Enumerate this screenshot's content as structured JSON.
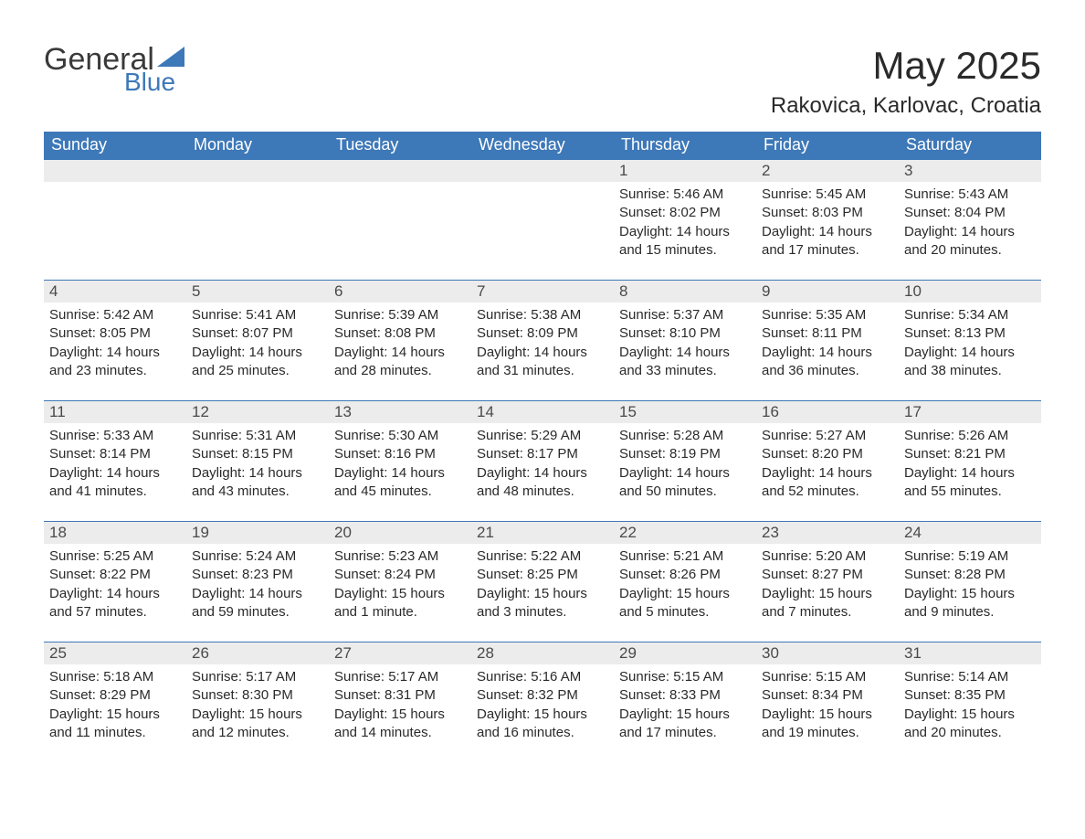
{
  "logo": {
    "text1": "General",
    "text2": "Blue"
  },
  "title": "May 2025",
  "location": "Rakovica, Karlovac, Croatia",
  "colors": {
    "header_bg": "#3d78b8",
    "header_text": "#ffffff",
    "daynum_bg": "#ececec",
    "border": "#3d78b8",
    "text": "#2a2a2a"
  },
  "weekdays": [
    "Sunday",
    "Monday",
    "Tuesday",
    "Wednesday",
    "Thursday",
    "Friday",
    "Saturday"
  ],
  "weeks": [
    [
      {
        "num": "",
        "sunrise": "",
        "sunset": "",
        "daylight": ""
      },
      {
        "num": "",
        "sunrise": "",
        "sunset": "",
        "daylight": ""
      },
      {
        "num": "",
        "sunrise": "",
        "sunset": "",
        "daylight": ""
      },
      {
        "num": "",
        "sunrise": "",
        "sunset": "",
        "daylight": ""
      },
      {
        "num": "1",
        "sunrise": "Sunrise: 5:46 AM",
        "sunset": "Sunset: 8:02 PM",
        "daylight": "Daylight: 14 hours and 15 minutes."
      },
      {
        "num": "2",
        "sunrise": "Sunrise: 5:45 AM",
        "sunset": "Sunset: 8:03 PM",
        "daylight": "Daylight: 14 hours and 17 minutes."
      },
      {
        "num": "3",
        "sunrise": "Sunrise: 5:43 AM",
        "sunset": "Sunset: 8:04 PM",
        "daylight": "Daylight: 14 hours and 20 minutes."
      }
    ],
    [
      {
        "num": "4",
        "sunrise": "Sunrise: 5:42 AM",
        "sunset": "Sunset: 8:05 PM",
        "daylight": "Daylight: 14 hours and 23 minutes."
      },
      {
        "num": "5",
        "sunrise": "Sunrise: 5:41 AM",
        "sunset": "Sunset: 8:07 PM",
        "daylight": "Daylight: 14 hours and 25 minutes."
      },
      {
        "num": "6",
        "sunrise": "Sunrise: 5:39 AM",
        "sunset": "Sunset: 8:08 PM",
        "daylight": "Daylight: 14 hours and 28 minutes."
      },
      {
        "num": "7",
        "sunrise": "Sunrise: 5:38 AM",
        "sunset": "Sunset: 8:09 PM",
        "daylight": "Daylight: 14 hours and 31 minutes."
      },
      {
        "num": "8",
        "sunrise": "Sunrise: 5:37 AM",
        "sunset": "Sunset: 8:10 PM",
        "daylight": "Daylight: 14 hours and 33 minutes."
      },
      {
        "num": "9",
        "sunrise": "Sunrise: 5:35 AM",
        "sunset": "Sunset: 8:11 PM",
        "daylight": "Daylight: 14 hours and 36 minutes."
      },
      {
        "num": "10",
        "sunrise": "Sunrise: 5:34 AM",
        "sunset": "Sunset: 8:13 PM",
        "daylight": "Daylight: 14 hours and 38 minutes."
      }
    ],
    [
      {
        "num": "11",
        "sunrise": "Sunrise: 5:33 AM",
        "sunset": "Sunset: 8:14 PM",
        "daylight": "Daylight: 14 hours and 41 minutes."
      },
      {
        "num": "12",
        "sunrise": "Sunrise: 5:31 AM",
        "sunset": "Sunset: 8:15 PM",
        "daylight": "Daylight: 14 hours and 43 minutes."
      },
      {
        "num": "13",
        "sunrise": "Sunrise: 5:30 AM",
        "sunset": "Sunset: 8:16 PM",
        "daylight": "Daylight: 14 hours and 45 minutes."
      },
      {
        "num": "14",
        "sunrise": "Sunrise: 5:29 AM",
        "sunset": "Sunset: 8:17 PM",
        "daylight": "Daylight: 14 hours and 48 minutes."
      },
      {
        "num": "15",
        "sunrise": "Sunrise: 5:28 AM",
        "sunset": "Sunset: 8:19 PM",
        "daylight": "Daylight: 14 hours and 50 minutes."
      },
      {
        "num": "16",
        "sunrise": "Sunrise: 5:27 AM",
        "sunset": "Sunset: 8:20 PM",
        "daylight": "Daylight: 14 hours and 52 minutes."
      },
      {
        "num": "17",
        "sunrise": "Sunrise: 5:26 AM",
        "sunset": "Sunset: 8:21 PM",
        "daylight": "Daylight: 14 hours and 55 minutes."
      }
    ],
    [
      {
        "num": "18",
        "sunrise": "Sunrise: 5:25 AM",
        "sunset": "Sunset: 8:22 PM",
        "daylight": "Daylight: 14 hours and 57 minutes."
      },
      {
        "num": "19",
        "sunrise": "Sunrise: 5:24 AM",
        "sunset": "Sunset: 8:23 PM",
        "daylight": "Daylight: 14 hours and 59 minutes."
      },
      {
        "num": "20",
        "sunrise": "Sunrise: 5:23 AM",
        "sunset": "Sunset: 8:24 PM",
        "daylight": "Daylight: 15 hours and 1 minute."
      },
      {
        "num": "21",
        "sunrise": "Sunrise: 5:22 AM",
        "sunset": "Sunset: 8:25 PM",
        "daylight": "Daylight: 15 hours and 3 minutes."
      },
      {
        "num": "22",
        "sunrise": "Sunrise: 5:21 AM",
        "sunset": "Sunset: 8:26 PM",
        "daylight": "Daylight: 15 hours and 5 minutes."
      },
      {
        "num": "23",
        "sunrise": "Sunrise: 5:20 AM",
        "sunset": "Sunset: 8:27 PM",
        "daylight": "Daylight: 15 hours and 7 minutes."
      },
      {
        "num": "24",
        "sunrise": "Sunrise: 5:19 AM",
        "sunset": "Sunset: 8:28 PM",
        "daylight": "Daylight: 15 hours and 9 minutes."
      }
    ],
    [
      {
        "num": "25",
        "sunrise": "Sunrise: 5:18 AM",
        "sunset": "Sunset: 8:29 PM",
        "daylight": "Daylight: 15 hours and 11 minutes."
      },
      {
        "num": "26",
        "sunrise": "Sunrise: 5:17 AM",
        "sunset": "Sunset: 8:30 PM",
        "daylight": "Daylight: 15 hours and 12 minutes."
      },
      {
        "num": "27",
        "sunrise": "Sunrise: 5:17 AM",
        "sunset": "Sunset: 8:31 PM",
        "daylight": "Daylight: 15 hours and 14 minutes."
      },
      {
        "num": "28",
        "sunrise": "Sunrise: 5:16 AM",
        "sunset": "Sunset: 8:32 PM",
        "daylight": "Daylight: 15 hours and 16 minutes."
      },
      {
        "num": "29",
        "sunrise": "Sunrise: 5:15 AM",
        "sunset": "Sunset: 8:33 PM",
        "daylight": "Daylight: 15 hours and 17 minutes."
      },
      {
        "num": "30",
        "sunrise": "Sunrise: 5:15 AM",
        "sunset": "Sunset: 8:34 PM",
        "daylight": "Daylight: 15 hours and 19 minutes."
      },
      {
        "num": "31",
        "sunrise": "Sunrise: 5:14 AM",
        "sunset": "Sunset: 8:35 PM",
        "daylight": "Daylight: 15 hours and 20 minutes."
      }
    ]
  ]
}
